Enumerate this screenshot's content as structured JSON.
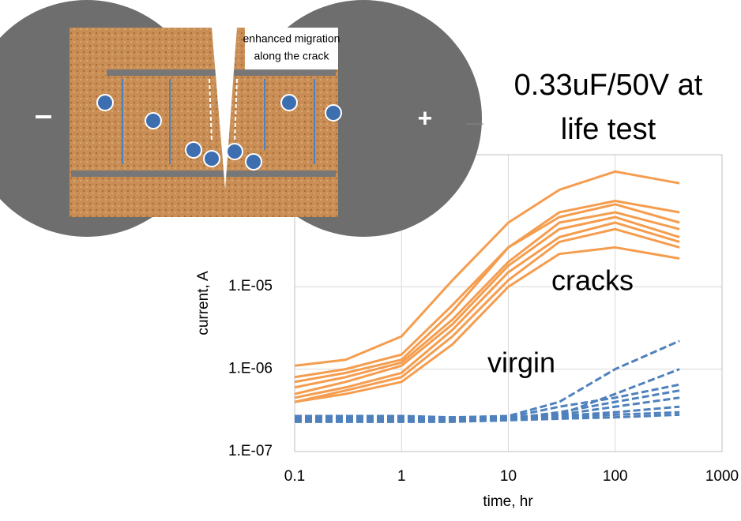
{
  "diagram": {
    "crack_label": [
      "enhanced migration",
      "along the crack"
    ],
    "minus": "–",
    "plus": "+"
  },
  "chart_data": {
    "type": "line",
    "title": [
      "0.33uF/50V at",
      "life test"
    ],
    "x_label": "time, hr",
    "y_label": "current, A",
    "annotations": [
      "cracks",
      "virgin"
    ],
    "log_x": true,
    "log_y": true,
    "grid": true,
    "xlim": [
      0.1,
      1000
    ],
    "xticks": [
      0.1,
      1,
      10,
      100,
      1000
    ],
    "ylim": [
      1e-07,
      0.0004
    ],
    "yticks": [
      {
        "value": 1e-07,
        "label": "1.E-07"
      },
      {
        "value": 1e-06,
        "label": "1.E-06"
      },
      {
        "value": 1e-05,
        "label": "1.E-05"
      }
    ],
    "x": [
      0.1,
      0.3,
      1,
      3,
      10,
      30,
      100,
      400
    ],
    "series": [
      {
        "color": "#f59d4f",
        "values": [
          1.1e-06,
          1.3e-06,
          2.5e-06,
          1.2e-05,
          6e-05,
          0.00015,
          0.00025,
          0.00018
        ]
      },
      {
        "color": "#f59d4f",
        "values": [
          8e-07,
          1e-06,
          1.5e-06,
          6e-06,
          3e-05,
          8e-05,
          0.00011,
          8e-05
        ]
      },
      {
        "color": "#f59d4f",
        "values": [
          7e-07,
          9e-07,
          1.3e-06,
          5e-06,
          3e-05,
          7e-05,
          0.0001,
          6e-05
        ]
      },
      {
        "color": "#f59d4f",
        "values": [
          6e-07,
          8e-07,
          1.2e-06,
          4e-06,
          2e-05,
          6e-05,
          8e-05,
          5e-05
        ]
      },
      {
        "color": "#f59d4f",
        "values": [
          5e-07,
          7e-07,
          1.1e-06,
          3.5e-06,
          1.8e-05,
          5e-05,
          7e-05,
          4e-05
        ]
      },
      {
        "color": "#f59d4f",
        "values": [
          4.5e-07,
          6e-07,
          9e-07,
          3e-06,
          1.5e-05,
          4e-05,
          6e-05,
          3.5e-05
        ]
      },
      {
        "color": "#f59d4f",
        "values": [
          4e-07,
          5.5e-07,
          8e-07,
          2.5e-06,
          1.2e-05,
          3.5e-05,
          5e-05,
          3e-05
        ]
      },
      {
        "color": "#f59d4f",
        "values": [
          4e-07,
          5e-07,
          7e-07,
          2e-06,
          1e-05,
          2.5e-05,
          3e-05,
          2.2e-05
        ]
      },
      {
        "color": "#4f81bd",
        "dashed": true,
        "values": [
          2.7e-07,
          2.7e-07,
          2.7e-07,
          2.6e-07,
          2.7e-07,
          4e-07,
          1e-06,
          2.2e-06
        ]
      },
      {
        "color": "#4f81bd",
        "dashed": true,
        "values": [
          2.6e-07,
          2.6e-07,
          2.6e-07,
          2.6e-07,
          2.6e-07,
          2.8e-07,
          5e-07,
          1e-06
        ]
      },
      {
        "color": "#4f81bd",
        "dashed": true,
        "values": [
          2.5e-07,
          2.5e-07,
          2.5e-07,
          2.5e-07,
          2.6e-07,
          3.5e-07,
          4.5e-07,
          6.5e-07
        ]
      },
      {
        "color": "#4f81bd",
        "dashed": true,
        "values": [
          2.5e-07,
          2.5e-07,
          2.5e-07,
          2.5e-07,
          2.5e-07,
          3e-07,
          4e-07,
          5.5e-07
        ]
      },
      {
        "color": "#4f81bd",
        "dashed": true,
        "values": [
          2.4e-07,
          2.4e-07,
          2.4e-07,
          2.4e-07,
          2.5e-07,
          2.8e-07,
          3.5e-07,
          4.5e-07
        ]
      },
      {
        "color": "#4f81bd",
        "dashed": true,
        "values": [
          2.4e-07,
          2.4e-07,
          2.4e-07,
          2.4e-07,
          2.5e-07,
          2.7e-07,
          3e-07,
          3.5e-07
        ]
      },
      {
        "color": "#4f81bd",
        "dashed": true,
        "values": [
          2.3e-07,
          2.3e-07,
          2.3e-07,
          2.3e-07,
          2.4e-07,
          2.6e-07,
          2.8e-07,
          3e-07
        ]
      },
      {
        "color": "#4f81bd",
        "dashed": true,
        "values": [
          2.3e-07,
          2.3e-07,
          2.3e-07,
          2.3e-07,
          2.4e-07,
          2.5e-07,
          2.6e-07,
          2.8e-07
        ]
      }
    ]
  }
}
